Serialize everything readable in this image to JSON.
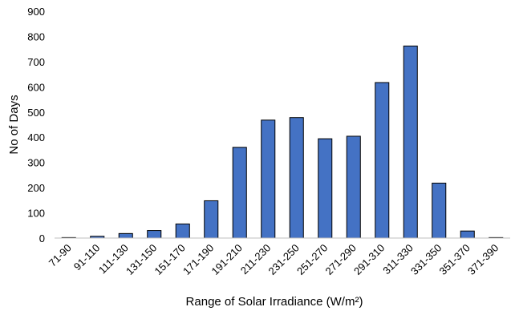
{
  "chart_data": {
    "type": "bar",
    "xlabel": "Range of Solar Irradiance (W/m²)",
    "ylabel": "No of Days",
    "ylim": [
      0,
      900
    ],
    "yticks": [
      0,
      100,
      200,
      300,
      400,
      500,
      600,
      700,
      800,
      900
    ],
    "categories": [
      "71-90",
      "91-110",
      "111-130",
      "131-150",
      "151-170",
      "171-190",
      "191-210",
      "211-230",
      "231-250",
      "251-270",
      "271-290",
      "291-310",
      "311-330",
      "331-350",
      "351-370",
      "371-390"
    ],
    "values": [
      2,
      7,
      18,
      30,
      56,
      148,
      360,
      468,
      478,
      394,
      404,
      617,
      762,
      218,
      28,
      2
    ],
    "bar_color": "#4472C4",
    "bar_edge_color": "#000000",
    "grid": false,
    "legend": false
  }
}
